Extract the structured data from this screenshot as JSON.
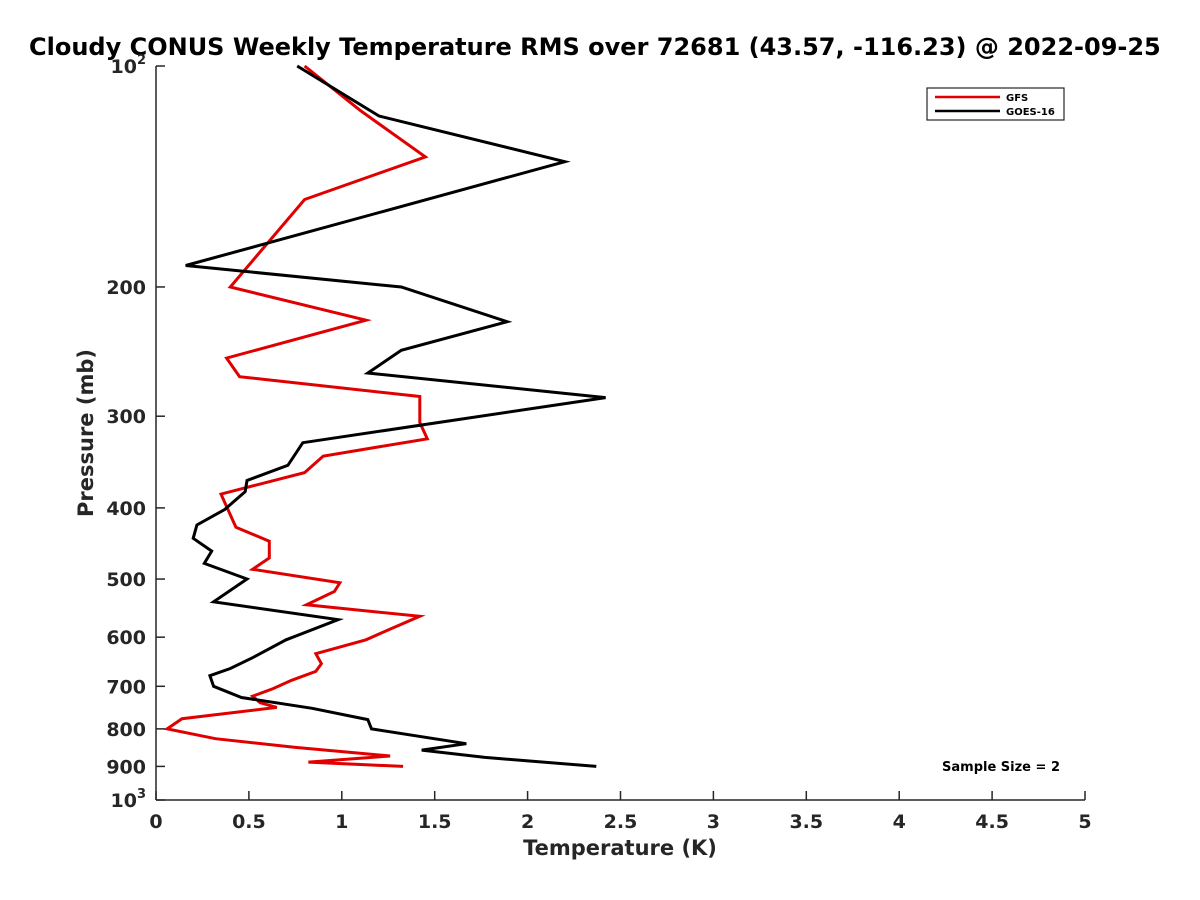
{
  "chart_data": {
    "type": "line",
    "title": "Cloudy CONUS Weekly Temperature RMS over 72681 (43.57, -116.23) @ 2022-09-25",
    "xlabel": "Temperature (K)",
    "ylabel": "Pressure (mb)",
    "xlim": [
      0,
      5
    ],
    "ylim": [
      100,
      1000
    ],
    "y_scale": "log",
    "y_reversed": true,
    "xticks": [
      "0",
      "0.5",
      "1",
      "1.5",
      "2",
      "2.5",
      "3",
      "3.5",
      "4",
      "4.5",
      "5"
    ],
    "yticks": [
      {
        "value": 100,
        "base": "10",
        "exp": "2"
      },
      {
        "value": 200,
        "base": "200",
        "exp": ""
      },
      {
        "value": 300,
        "base": "300",
        "exp": ""
      },
      {
        "value": 400,
        "base": "400",
        "exp": ""
      },
      {
        "value": 500,
        "base": "500",
        "exp": ""
      },
      {
        "value": 600,
        "base": "600",
        "exp": ""
      },
      {
        "value": 700,
        "base": "700",
        "exp": ""
      },
      {
        "value": 800,
        "base": "800",
        "exp": ""
      },
      {
        "value": 900,
        "base": "900",
        "exp": ""
      },
      {
        "value": 1000,
        "base": "10",
        "exp": "3"
      }
    ],
    "grid": false,
    "legend_position": "top-right",
    "annotation": "Sample Size = 2",
    "series": [
      {
        "name": "GFS",
        "color": "#e00000",
        "points": [
          [
            0.8,
            100
          ],
          [
            1.1,
            115
          ],
          [
            1.45,
            133
          ],
          [
            0.8,
            152
          ],
          [
            0.4,
            200
          ],
          [
            1.13,
            222
          ],
          [
            0.38,
            250
          ],
          [
            0.45,
            265
          ],
          [
            1.42,
            282
          ],
          [
            1.42,
            306
          ],
          [
            1.46,
            322
          ],
          [
            0.9,
            340
          ],
          [
            0.8,
            358
          ],
          [
            0.35,
            383
          ],
          [
            0.43,
            425
          ],
          [
            0.61,
            444
          ],
          [
            0.61,
            468
          ],
          [
            0.52,
            485
          ],
          [
            0.99,
            506
          ],
          [
            0.96,
            520
          ],
          [
            0.81,
            542
          ],
          [
            1.42,
            562
          ],
          [
            1.26,
            585
          ],
          [
            1.13,
            605
          ],
          [
            0.86,
            632
          ],
          [
            0.89,
            652
          ],
          [
            0.86,
            668
          ],
          [
            0.73,
            687
          ],
          [
            0.63,
            705
          ],
          [
            0.52,
            722
          ],
          [
            0.56,
            737
          ],
          [
            0.65,
            748
          ],
          [
            0.14,
            775
          ],
          [
            0.06,
            800
          ],
          [
            0.32,
            825
          ],
          [
            0.75,
            848
          ],
          [
            1.26,
            871
          ],
          [
            0.82,
            888
          ],
          [
            1.33,
            900
          ]
        ]
      },
      {
        "name": "GOES-16",
        "color": "#000000",
        "points": [
          [
            0.76,
            100
          ],
          [
            1.2,
            117
          ],
          [
            2.2,
            135
          ],
          [
            0.16,
            187
          ],
          [
            1.32,
            200
          ],
          [
            1.89,
            223
          ],
          [
            1.32,
            244
          ],
          [
            1.14,
            262
          ],
          [
            2.42,
            283
          ],
          [
            0.79,
            326
          ],
          [
            0.71,
            350
          ],
          [
            0.49,
            367
          ],
          [
            0.48,
            380
          ],
          [
            0.37,
            402
          ],
          [
            0.22,
            422
          ],
          [
            0.2,
            440
          ],
          [
            0.3,
            458
          ],
          [
            0.26,
            476
          ],
          [
            0.49,
            500
          ],
          [
            0.31,
            537
          ],
          [
            0.98,
            568
          ],
          [
            0.7,
            605
          ],
          [
            0.52,
            640
          ],
          [
            0.4,
            662
          ],
          [
            0.29,
            677
          ],
          [
            0.31,
            700
          ],
          [
            0.46,
            725
          ],
          [
            0.84,
            750
          ],
          [
            1.14,
            777
          ],
          [
            1.16,
            800
          ],
          [
            1.67,
            838
          ],
          [
            1.43,
            855
          ],
          [
            1.77,
            875
          ],
          [
            2.37,
            900
          ]
        ]
      }
    ]
  }
}
